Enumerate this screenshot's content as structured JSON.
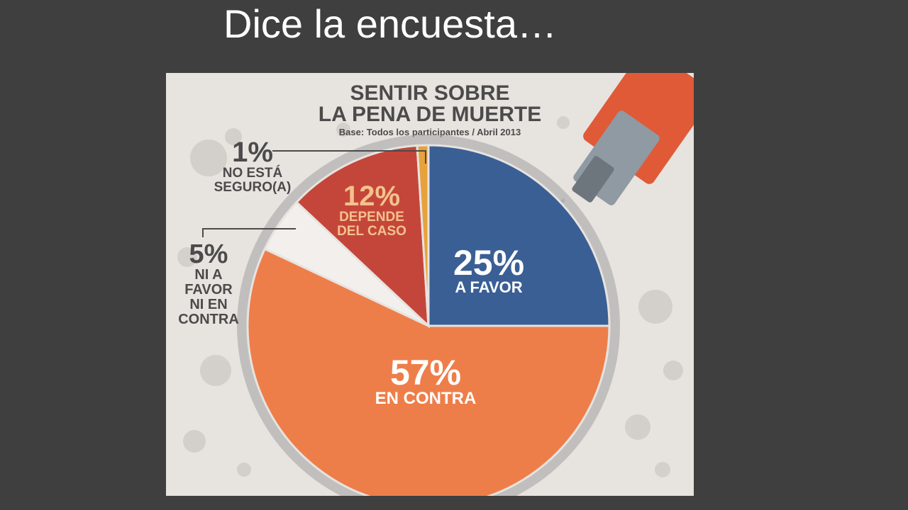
{
  "slide": {
    "title": "Dice la encuesta…"
  },
  "chart_data": {
    "type": "pie",
    "title_line1": "SENTIR SOBRE",
    "title_line2": "LA PENA DE MUERTE",
    "subtitle": "Base: Todos los participantes / Abril 2013",
    "slices": [
      {
        "pct_label": "25%",
        "label_lines": [
          "A FAVOR"
        ],
        "value": 25,
        "color": "#3a5f95"
      },
      {
        "pct_label": "57%",
        "label_lines": [
          "EN CONTRA"
        ],
        "value": 57,
        "color": "#ee7e49"
      },
      {
        "pct_label": "5%",
        "label_lines": [
          "NI A",
          "FAVOR",
          "NI EN",
          "CONTRA"
        ],
        "value": 5,
        "color": "#f3efec"
      },
      {
        "pct_label": "12%",
        "label_lines": [
          "DEPENDE",
          "DEL CASO"
        ],
        "value": 12,
        "color": "#c4463b"
      },
      {
        "pct_label": "1%",
        "label_lines": [
          "NO ESTÁ",
          "SEGURO(A)"
        ],
        "value": 1,
        "color": "#e7a23b"
      }
    ],
    "colors": {
      "ring": "#a3a3a3",
      "label_inside": "#ffffff",
      "label_pct_red": "#f4c28c",
      "label_outside": "#4b4b4b"
    }
  }
}
